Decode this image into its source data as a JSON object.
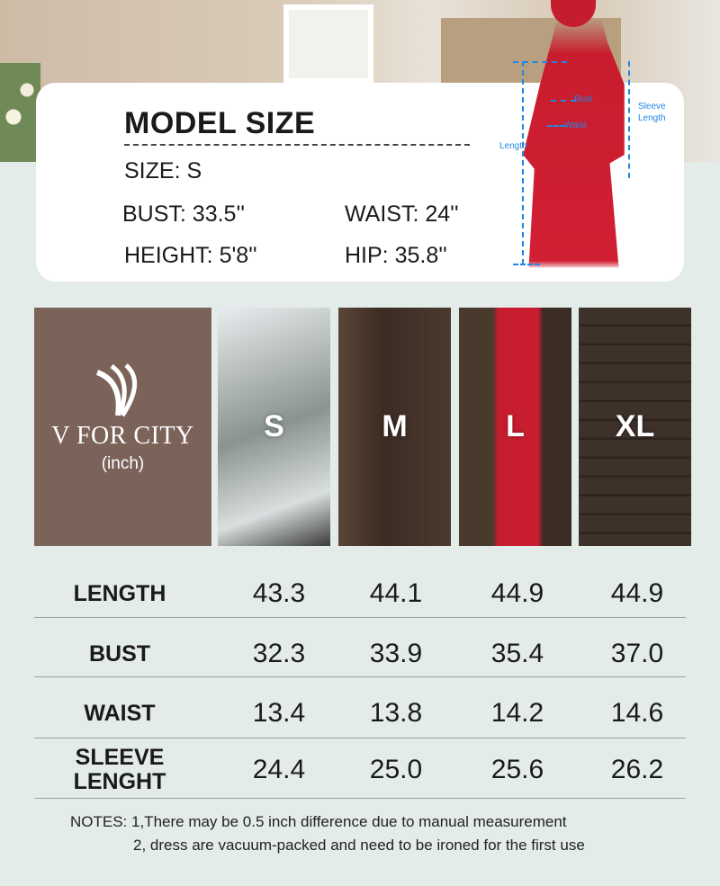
{
  "model_size": {
    "title": "MODEL SIZE",
    "size": "SIZE: S",
    "bust": "BUST: 33.5''",
    "waist": "WAIST: 24''",
    "height": "HEIGHT: 5'8''",
    "hip": "HIP: 35.8''"
  },
  "diagram_labels": {
    "bust": "Bust",
    "waist": "Waist",
    "length": "Length",
    "sleeve": "Sleeve Length"
  },
  "brand": {
    "name": "V FOR CITY",
    "unit": "(inch)"
  },
  "sizes": [
    "S",
    "M",
    "L",
    "XL"
  ],
  "rows": [
    {
      "label": "LENGTH",
      "values": [
        "43.3",
        "44.1",
        "44.9",
        "44.9"
      ]
    },
    {
      "label": "BUST",
      "values": [
        "32.3",
        "33.9",
        "35.4",
        "37.0"
      ]
    },
    {
      "label": "WAIST",
      "values": [
        "13.4",
        "13.8",
        "14.2",
        "14.6"
      ]
    },
    {
      "label": "SLEEVE LENGHT",
      "values": [
        "24.4",
        "25.0",
        "25.6",
        "26.2"
      ]
    }
  ],
  "notes": {
    "line1": "NOTES: 1,There may be 0.5 inch difference due to manual measurement",
    "line2": "2, dress are vacuum-packed and need to be ironed for the first use"
  },
  "colors": {
    "brand_bg": "#7b6359",
    "measure_blue": "#1e88e5",
    "dress_red": "#c81d2e"
  }
}
